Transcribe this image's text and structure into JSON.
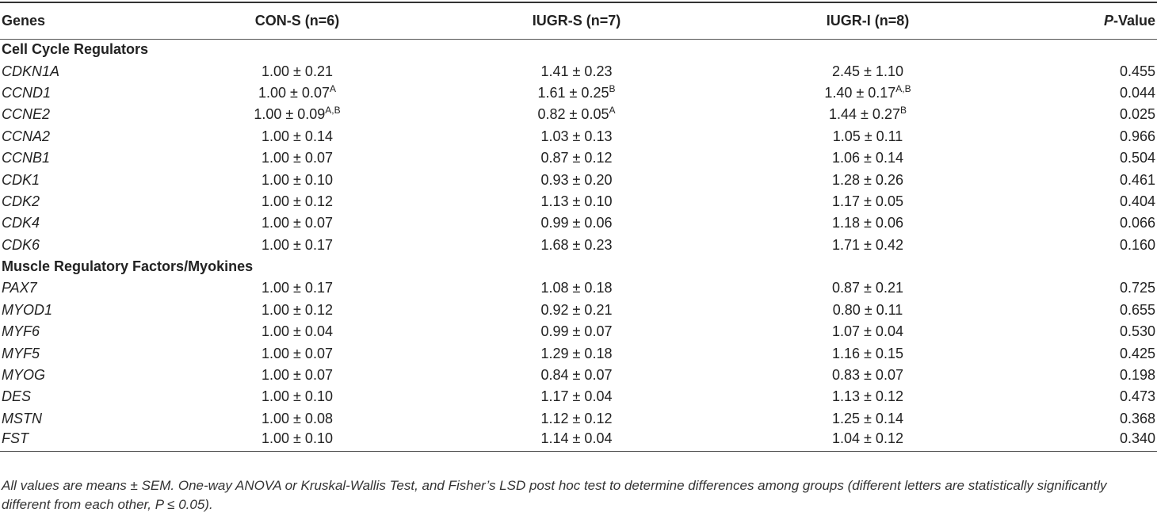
{
  "table": {
    "header": [
      "Genes",
      "CON-S (n=6)",
      "IUGR-S (n=7)",
      "IUGR-I (n=8)"
    ],
    "p_value_header": {
      "italic": "P",
      "plain": "-Value"
    },
    "sections": [
      {
        "title": "Cell Cycle Regulators",
        "rows": [
          {
            "gene": "CDKN1A",
            "cells": [
              {
                "text": "1.00 ± 0.21"
              },
              {
                "text": "1.41 ± 0.23"
              },
              {
                "text": "2.45 ± 1.10"
              }
            ],
            "p": "0.455"
          },
          {
            "gene": "CCND1",
            "cells": [
              {
                "text": "1.00 ± 0.07",
                "sup": "A"
              },
              {
                "text": "1.61 ± 0.25",
                "sup": "B"
              },
              {
                "text": "1.40 ± 0.17",
                "sup": "A,B"
              }
            ],
            "p": "0.044"
          },
          {
            "gene": "CCNE2",
            "cells": [
              {
                "text": "1.00 ± 0.09",
                "sup": "A,B"
              },
              {
                "text": "0.82 ± 0.05",
                "sup": "A"
              },
              {
                "text": "1.44 ± 0.27",
                "sup": "B"
              }
            ],
            "p": "0.025"
          },
          {
            "gene": "CCNA2",
            "cells": [
              {
                "text": "1.00 ± 0.14"
              },
              {
                "text": "1.03 ± 0.13"
              },
              {
                "text": "1.05 ± 0.11"
              }
            ],
            "p": "0.966"
          },
          {
            "gene": "CCNB1",
            "cells": [
              {
                "text": "1.00 ± 0.07"
              },
              {
                "text": "0.87 ± 0.12"
              },
              {
                "text": "1.06 ± 0.14"
              }
            ],
            "p": "0.504"
          },
          {
            "gene": "CDK1",
            "cells": [
              {
                "text": "1.00 ± 0.10"
              },
              {
                "text": "0.93 ± 0.20"
              },
              {
                "text": "1.28 ± 0.26"
              }
            ],
            "p": "0.461"
          },
          {
            "gene": "CDK2",
            "cells": [
              {
                "text": "1.00 ± 0.12"
              },
              {
                "text": "1.13 ± 0.10"
              },
              {
                "text": "1.17 ± 0.05"
              }
            ],
            "p": "0.404"
          },
          {
            "gene": "CDK4",
            "cells": [
              {
                "text": "1.00 ± 0.07"
              },
              {
                "text": "0.99 ± 0.06"
              },
              {
                "text": "1.18 ± 0.06"
              }
            ],
            "p": "0.066"
          },
          {
            "gene": "CDK6",
            "cells": [
              {
                "text": "1.00 ± 0.17"
              },
              {
                "text": "1.68 ± 0.23"
              },
              {
                "text": "1.71 ± 0.42"
              }
            ],
            "p": "0.160"
          }
        ]
      },
      {
        "title": "Muscle Regulatory Factors/Myokines",
        "rows": [
          {
            "gene": "PAX7",
            "cells": [
              {
                "text": "1.00 ± 0.17"
              },
              {
                "text": "1.08 ± 0.18"
              },
              {
                "text": "0.87 ± 0.21"
              }
            ],
            "p": "0.725"
          },
          {
            "gene": "MYOD1",
            "cells": [
              {
                "text": "1.00 ± 0.12"
              },
              {
                "text": "0.92 ± 0.21"
              },
              {
                "text": "0.80 ± 0.11"
              }
            ],
            "p": "0.655"
          },
          {
            "gene": "MYF6",
            "cells": [
              {
                "text": "1.00 ± 0.04"
              },
              {
                "text": "0.99 ± 0.07"
              },
              {
                "text": "1.07 ± 0.04"
              }
            ],
            "p": "0.530"
          },
          {
            "gene": "MYF5",
            "cells": [
              {
                "text": "1.00 ± 0.07"
              },
              {
                "text": "1.29 ± 0.18"
              },
              {
                "text": "1.16 ± 0.15"
              }
            ],
            "p": "0.425"
          },
          {
            "gene": "MYOG",
            "cells": [
              {
                "text": "1.00 ± 0.07"
              },
              {
                "text": "0.84 ± 0.07"
              },
              {
                "text": "0.83 ± 0.07"
              }
            ],
            "p": "0.198"
          },
          {
            "gene": "DES",
            "cells": [
              {
                "text": "1.00 ± 0.10"
              },
              {
                "text": "1.17 ± 0.04"
              },
              {
                "text": "1.13 ± 0.12"
              }
            ],
            "p": "0.473"
          },
          {
            "gene": "MSTN",
            "cells": [
              {
                "text": "1.00 ± 0.08"
              },
              {
                "text": "1.12 ± 0.12"
              },
              {
                "text": "1.25 ± 0.14"
              }
            ],
            "p": "0.368"
          },
          {
            "gene": "FST",
            "cells": [
              {
                "text": "1.00 ± 0.10"
              },
              {
                "text": "1.14 ± 0.04"
              },
              {
                "text": "1.04 ± 0.12"
              }
            ],
            "p": "0.340"
          }
        ]
      }
    ],
    "footnote": "All values are means ± SEM. One-way ANOVA or Kruskal-Wallis Test, and Fisher’s LSD post hoc test to determine differences among groups (different letters are statistically significantly different from each other, P ≤ 0.05)."
  }
}
